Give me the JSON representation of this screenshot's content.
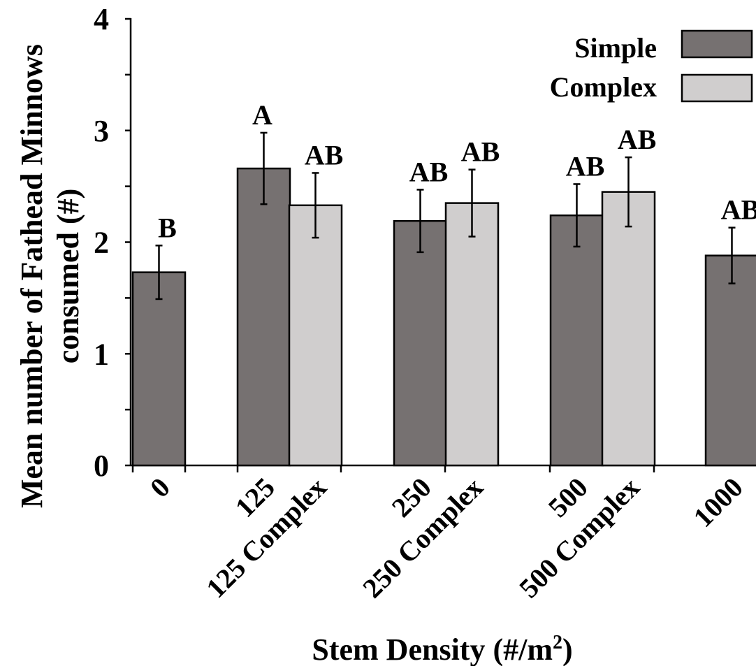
{
  "chart_data": {
    "type": "bar",
    "xlabel": "Stem Density (#/m",
    "xlabel_sup": "2",
    "xlabel_tail": ")",
    "ylabel_line1": "Mean number of Fathead Minnows",
    "ylabel_line2": "consumed (#)",
    "ylim": [
      0,
      4
    ],
    "yticks": [
      "0",
      "1",
      "2",
      "3",
      "4"
    ],
    "legend": {
      "placement": "top-right",
      "entries": [
        {
          "name": "Simple",
          "color": "#767171"
        },
        {
          "name": "Complex",
          "color": "#d0cece"
        }
      ]
    },
    "bars": [
      {
        "category": "0",
        "series": "Simple",
        "value": 1.73,
        "error": 0.24,
        "letter": "B"
      },
      {
        "category": "125",
        "series": "Simple",
        "value": 2.66,
        "error": 0.32,
        "letter": "A"
      },
      {
        "category": "125 Complex",
        "series": "Complex",
        "value": 2.33,
        "error": 0.29,
        "letter": "AB"
      },
      {
        "category": "250",
        "series": "Simple",
        "value": 2.19,
        "error": 0.28,
        "letter": "AB"
      },
      {
        "category": "250 Complex",
        "series": "Complex",
        "value": 2.35,
        "error": 0.3,
        "letter": "AB"
      },
      {
        "category": "500",
        "series": "Simple",
        "value": 2.24,
        "error": 0.28,
        "letter": "AB"
      },
      {
        "category": "500 Complex",
        "series": "Complex",
        "value": 2.45,
        "error": 0.31,
        "letter": "AB"
      },
      {
        "category": "1000",
        "series": "Simple",
        "value": 1.88,
        "error": 0.25,
        "letter": "AB"
      }
    ]
  }
}
